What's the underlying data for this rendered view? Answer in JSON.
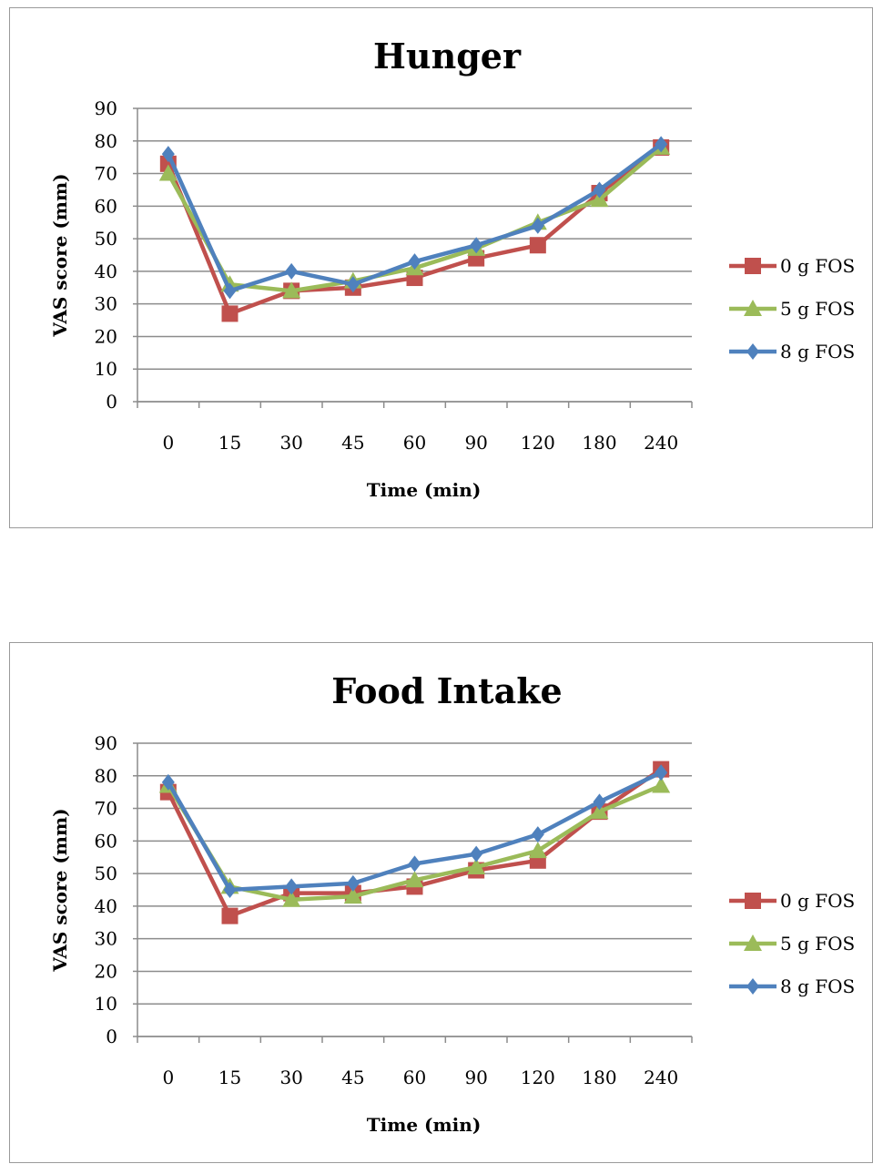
{
  "chart_data": [
    {
      "type": "line",
      "title": "Hunger",
      "xlabel": "Time (min)",
      "ylabel": "VAS score (mm)",
      "categories": [
        "0",
        "15",
        "30",
        "45",
        "60",
        "90",
        "120",
        "180",
        "240"
      ],
      "ylim": [
        0,
        90
      ],
      "yticks": [
        0,
        10,
        20,
        30,
        40,
        50,
        60,
        70,
        80,
        90
      ],
      "grid": true,
      "legend_position": "right",
      "series": [
        {
          "name": "0 g FOS",
          "color": "#c0504d",
          "marker": "square",
          "values": [
            73,
            27,
            34,
            35,
            38,
            44,
            48,
            64,
            78
          ]
        },
        {
          "name": "5 g FOS",
          "color": "#9bbb59",
          "marker": "triangle",
          "values": [
            70,
            36,
            34,
            37,
            41,
            47,
            55,
            62,
            78
          ]
        },
        {
          "name": "8 g FOS",
          "color": "#4f81bd",
          "marker": "diamond",
          "values": [
            76,
            34,
            40,
            36,
            43,
            48,
            54,
            65,
            79
          ]
        }
      ]
    },
    {
      "type": "line",
      "title": "Food Intake",
      "xlabel": "Time (min)",
      "ylabel": "VAS score (mm)",
      "categories": [
        "0",
        "15",
        "30",
        "45",
        "60",
        "90",
        "120",
        "180",
        "240"
      ],
      "ylim": [
        0,
        90
      ],
      "yticks": [
        0,
        10,
        20,
        30,
        40,
        50,
        60,
        70,
        80,
        90
      ],
      "grid": true,
      "legend_position": "right",
      "series": [
        {
          "name": "0 g FOS",
          "color": "#c0504d",
          "marker": "square",
          "values": [
            75,
            37,
            44,
            44,
            46,
            51,
            54,
            69,
            82
          ]
        },
        {
          "name": "5 g FOS",
          "color": "#9bbb59",
          "marker": "triangle",
          "values": [
            77,
            46,
            42,
            43,
            48,
            52,
            57,
            69,
            77
          ]
        },
        {
          "name": "8 g FOS",
          "color": "#4f81bd",
          "marker": "diamond",
          "values": [
            78,
            45,
            46,
            47,
            53,
            56,
            62,
            72,
            81
          ]
        }
      ]
    }
  ]
}
